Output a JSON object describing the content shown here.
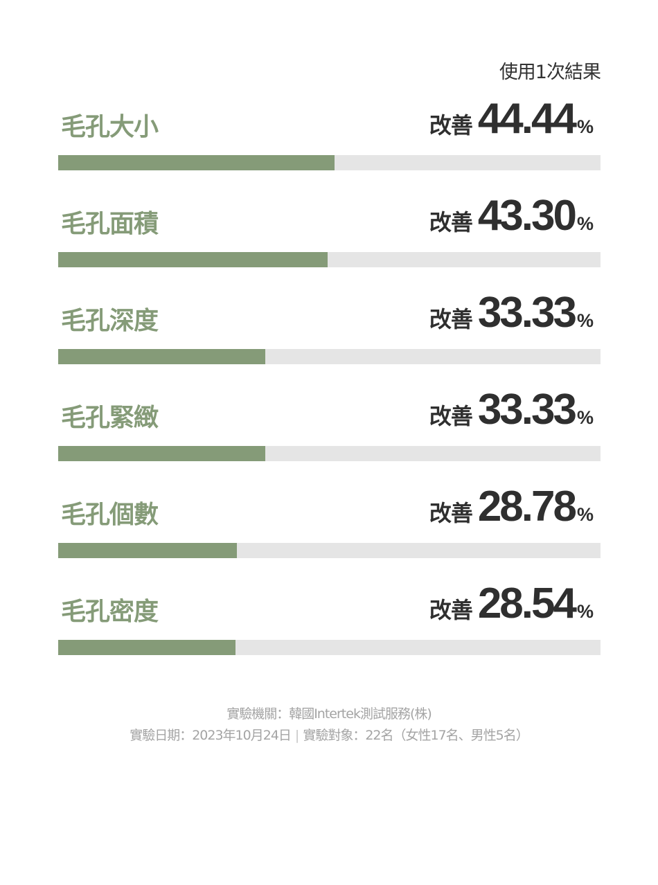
{
  "header": {
    "result_label": "使用1次結果"
  },
  "chart_data": {
    "type": "bar",
    "orientation": "horizontal",
    "categories": [
      "毛孔大小",
      "毛孔面積",
      "毛孔深度",
      "毛孔緊緻",
      "毛孔個數",
      "毛孔密度"
    ],
    "values": [
      44.44,
      43.3,
      33.33,
      33.33,
      28.78,
      28.54
    ],
    "value_labels": [
      "44.44",
      "43.30",
      "33.33",
      "33.33",
      "28.78",
      "28.54"
    ],
    "value_prefix": "改善",
    "value_suffix": "%",
    "bar_color": "#859b78",
    "track_color": "#e5e5e5",
    "label_color": "#859b78",
    "value_color": "#2f2f2f"
  },
  "footnote": {
    "line1": "實驗機關：韓國Intertek測試服務(株)",
    "line2_date": "實驗日期：2023年10月24日",
    "line2_separator": "|",
    "line2_subjects": "實驗對象：22名（女性17名、男性5名）"
  }
}
